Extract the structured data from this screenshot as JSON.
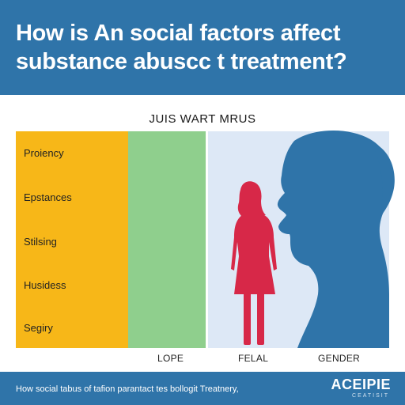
{
  "header": {
    "title": "How is An social factors affect substance abuscc t treatment?"
  },
  "chart": {
    "subtitle": "JUIS WART MRUS",
    "rows": [
      "Proiency",
      "Epstances",
      "Stilsing",
      "Husidess",
      "Segiry"
    ],
    "columns": [
      "LOPE",
      "FELAL",
      "GENDER"
    ]
  },
  "footer": {
    "caption": "How social tabus of tafion parantact tes bollogit Treatnery,",
    "brand": "ACEIPIE",
    "brand_sub": "CEATISIT"
  },
  "colors": {
    "header_blue": "#2f74a9",
    "yellow": "#f7b718",
    "green": "#8fcf8d",
    "light_blue": "#dde8f6",
    "figure_red": "#d72848",
    "silhouette_blue": "#2f74a9"
  },
  "icons": [
    "woman-figure-icon",
    "head-silhouette-icon"
  ]
}
